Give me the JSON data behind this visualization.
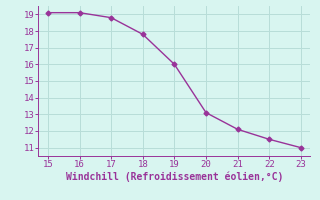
{
  "x": [
    15,
    16,
    17,
    18,
    19,
    20,
    21,
    22,
    23
  ],
  "y": [
    19.1,
    19.1,
    18.8,
    17.8,
    16.0,
    13.1,
    12.1,
    11.5,
    11.0
  ],
  "xlim": [
    14.7,
    23.3
  ],
  "ylim": [
    10.5,
    19.5
  ],
  "xticks": [
    15,
    16,
    17,
    18,
    19,
    20,
    21,
    22,
    23
  ],
  "yticks": [
    11,
    12,
    13,
    14,
    15,
    16,
    17,
    18,
    19
  ],
  "xlabel": "Windchill (Refroidissement éolien,°C)",
  "line_color": "#993399",
  "marker": "D",
  "marker_size": 2.5,
  "bg_color": "#d8f5f0",
  "grid_color": "#b8ddd8",
  "tick_color": "#993399",
  "label_color": "#993399",
  "font_size": 6.5,
  "xlabel_fontsize": 7.0
}
